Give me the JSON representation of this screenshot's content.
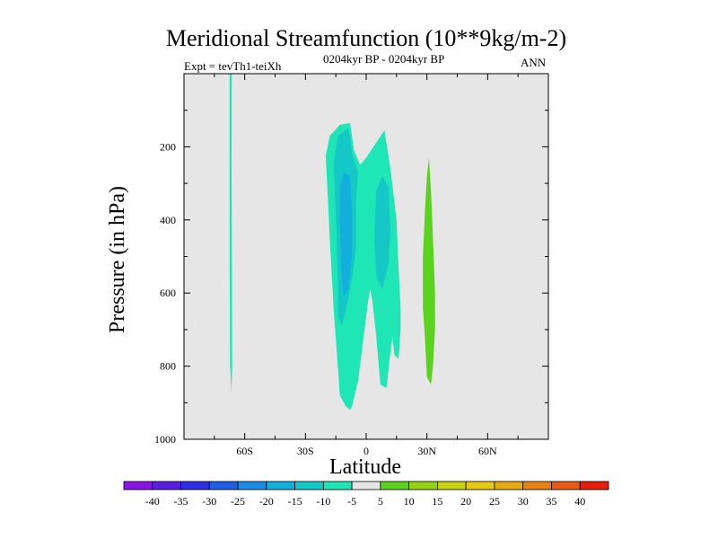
{
  "chart_data": {
    "type": "contour",
    "title": "Meridional Streamfunction (10**9kg/m-2)",
    "subtitle_left": "Expt = tevTh1-teiXh",
    "subtitle_center": "0204kyr BP - 0204kyr BP",
    "subtitle_right": "ANN",
    "xlabel": "Latitude",
    "ylabel": "Pressure (in hPa)",
    "xlim": [
      -90,
      90
    ],
    "ylim": [
      1000,
      0
    ],
    "x_ticks": [
      {
        "value": -60,
        "label": "60S"
      },
      {
        "value": -30,
        "label": "30S"
      },
      {
        "value": 0,
        "label": "0"
      },
      {
        "value": 30,
        "label": "30N"
      },
      {
        "value": 60,
        "label": "60N"
      }
    ],
    "y_ticks": [
      {
        "value": 200,
        "label": "200"
      },
      {
        "value": 400,
        "label": "400"
      },
      {
        "value": 600,
        "label": "600"
      },
      {
        "value": 800,
        "label": "800"
      },
      {
        "value": 1000,
        "label": "1000"
      }
    ],
    "colorbar": {
      "levels": [
        -40,
        -35,
        -30,
        -25,
        -20,
        -15,
        -10,
        -5,
        5,
        10,
        15,
        20,
        25,
        30,
        35,
        40
      ],
      "colors": [
        "#8a14e6",
        "#5a1ee0",
        "#2e2ee6",
        "#1e5fe6",
        "#1a8ce6",
        "#12aedc",
        "#14c8c8",
        "#1ee6b4",
        "#e6e6e6",
        "#5ad21e",
        "#96d214",
        "#c8d214",
        "#e6c814",
        "#e6aa14",
        "#e68214",
        "#e65a14",
        "#e61e0a"
      ]
    },
    "regions": [
      {
        "name": "sh-highlat-cell",
        "level": "-10 to -5",
        "color": "#1ee6b4",
        "points": [
          [
            -67.5,
            0
          ],
          [
            -66.4,
            0
          ],
          [
            -66.5,
            250
          ],
          [
            -66.3,
            600
          ],
          [
            -66.2,
            800
          ],
          [
            -66.6,
            870
          ],
          [
            -67.2,
            800
          ],
          [
            -67.5,
            500
          ]
        ]
      },
      {
        "name": "tropical-cell-outer",
        "level": "-10 to -5",
        "color": "#1ee6b4",
        "points": [
          [
            -20,
            225
          ],
          [
            -18,
            170
          ],
          [
            -13,
            140
          ],
          [
            -8,
            135
          ],
          [
            -6,
            210
          ],
          [
            -3,
            250
          ],
          [
            0,
            230
          ],
          [
            6,
            180
          ],
          [
            9,
            155
          ],
          [
            12,
            260
          ],
          [
            15,
            400
          ],
          [
            16,
            530
          ],
          [
            17,
            640
          ],
          [
            17,
            700
          ],
          [
            16,
            780
          ],
          [
            14,
            770
          ],
          [
            13,
            720
          ],
          [
            12,
            760
          ],
          [
            10,
            860
          ],
          [
            7,
            850
          ],
          [
            5,
            720
          ],
          [
            3,
            620
          ],
          [
            2,
            590
          ],
          [
            1,
            620
          ],
          [
            -4,
            840
          ],
          [
            -7,
            910
          ],
          [
            -8,
            920
          ],
          [
            -10,
            910
          ],
          [
            -13,
            880
          ],
          [
            -14,
            800
          ],
          [
            -16,
            650
          ],
          [
            -18,
            450
          ],
          [
            -19,
            330
          ]
        ]
      },
      {
        "name": "sh-tropical-core",
        "level": "-15 to -10",
        "color": "#14c8c8",
        "points": [
          [
            -16,
            240
          ],
          [
            -14,
            170
          ],
          [
            -9,
            150
          ],
          [
            -8,
            170
          ],
          [
            -7,
            220
          ],
          [
            -4,
            270
          ],
          [
            -5,
            340
          ],
          [
            -5,
            480
          ],
          [
            -7,
            560
          ],
          [
            -9,
            620
          ],
          [
            -12,
            690
          ],
          [
            -14,
            660
          ],
          [
            -14,
            560
          ],
          [
            -15,
            400
          ]
        ]
      },
      {
        "name": "sh-tropical-inner",
        "level": "-20 to -15",
        "color": "#12aedc",
        "points": [
          [
            -13,
            310
          ],
          [
            -11,
            270
          ],
          [
            -8,
            280
          ],
          [
            -7,
            380
          ],
          [
            -7,
            500
          ],
          [
            -9,
            590
          ],
          [
            -11,
            610
          ],
          [
            -12,
            560
          ],
          [
            -13,
            420
          ]
        ]
      },
      {
        "name": "nh-tropical-core",
        "level": "-15 to -10",
        "color": "#14c8c8",
        "points": [
          [
            5,
            320
          ],
          [
            8,
            280
          ],
          [
            11,
            310
          ],
          [
            12,
            430
          ],
          [
            11,
            520
          ],
          [
            8,
            590
          ],
          [
            5,
            550
          ],
          [
            4,
            450
          ]
        ]
      },
      {
        "name": "nh-subtropical-cell",
        "level": "5 to 10",
        "color": "#5ad21e",
        "points": [
          [
            31,
            230
          ],
          [
            32,
            320
          ],
          [
            33,
            450
          ],
          [
            34,
            600
          ],
          [
            34,
            700
          ],
          [
            33,
            800
          ],
          [
            32,
            850
          ],
          [
            30,
            830
          ],
          [
            29,
            720
          ],
          [
            28,
            640
          ],
          [
            28,
            500
          ],
          [
            29,
            380
          ],
          [
            30,
            280
          ]
        ]
      }
    ]
  }
}
